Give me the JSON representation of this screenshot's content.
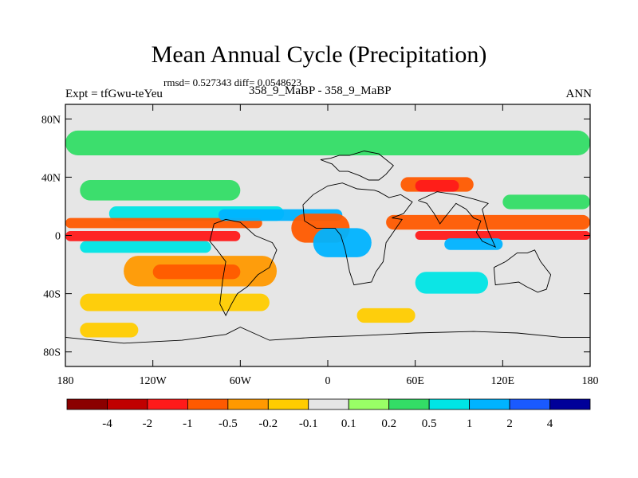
{
  "header": {
    "title": "Mean Annual Cycle (Precipitation)",
    "stats": "rmsd= 0.527343 diff= 0.0548623",
    "expt": "Expt = tfGwu-teYeu",
    "case": "358_9_MaBP - 358_9_MaBP",
    "season": "ANN"
  },
  "colors": {
    "neutral": "#e6e6e6",
    "levels": [
      "#8b0000",
      "#c00000",
      "#ff1a1a",
      "#ff5a00",
      "#ff9900",
      "#ffcc00",
      "#e6e6e6",
      "#99ff66",
      "#33dd66",
      "#00e5e5",
      "#00b3ff",
      "#1a5aff",
      "#000099"
    ]
  },
  "chart_data": {
    "type": "heatmap",
    "title": "Mean Annual Cycle (Precipitation)",
    "xlabel": "",
    "ylabel": "",
    "xlim": [
      -180,
      180
    ],
    "ylim": [
      -90,
      90
    ],
    "x_ticks": [
      {
        "value": -180,
        "label": "180"
      },
      {
        "value": -120,
        "label": "120W"
      },
      {
        "value": -60,
        "label": "60W"
      },
      {
        "value": 0,
        "label": "0"
      },
      {
        "value": 60,
        "label": "60E"
      },
      {
        "value": 120,
        "label": "120E"
      },
      {
        "value": 180,
        "label": "180"
      }
    ],
    "y_ticks": [
      {
        "value": 80,
        "label": "80N"
      },
      {
        "value": 40,
        "label": "40N"
      },
      {
        "value": 0,
        "label": "0"
      },
      {
        "value": -40,
        "label": "40S"
      },
      {
        "value": -80,
        "label": "80S"
      }
    ],
    "colorbar_labels": [
      "-4",
      "-2",
      "-1",
      "-0.5",
      "-0.2",
      "-0.1",
      "0.1",
      "0.2",
      "0.5",
      "1",
      "2",
      "4"
    ],
    "field_bands": [
      {
        "lat": [
          55,
          72
        ],
        "lon": [
          -180,
          180
        ],
        "value": 0.2
      },
      {
        "lat": [
          24,
          38
        ],
        "lon": [
          -170,
          -60
        ],
        "value": 0.2
      },
      {
        "lat": [
          10,
          20
        ],
        "lon": [
          -150,
          -30
        ],
        "value": 0.5
      },
      {
        "lat": [
          5,
          12
        ],
        "lon": [
          -180,
          -45
        ],
        "value": -1
      },
      {
        "lat": [
          -4,
          3
        ],
        "lon": [
          -180,
          -60
        ],
        "value": -2
      },
      {
        "lat": [
          10,
          18
        ],
        "lon": [
          -75,
          10
        ],
        "value": 1
      },
      {
        "lat": [
          -12,
          -4
        ],
        "lon": [
          -170,
          -80
        ],
        "value": 0.5
      },
      {
        "lat": [
          -35,
          -14
        ],
        "lon": [
          -140,
          -35
        ],
        "value": -0.5
      },
      {
        "lat": [
          -30,
          -20
        ],
        "lon": [
          -120,
          -60
        ],
        "value": -1
      },
      {
        "lat": [
          -52,
          -40
        ],
        "lon": [
          -170,
          -40
        ],
        "value": -0.2
      },
      {
        "lat": [
          -70,
          -60
        ],
        "lon": [
          -170,
          -130
        ],
        "value": -0.2
      },
      {
        "lat": [
          -5,
          15
        ],
        "lon": [
          -25,
          15
        ],
        "value": -1
      },
      {
        "lat": [
          -15,
          5
        ],
        "lon": [
          -10,
          30
        ],
        "value": 1
      },
      {
        "lat": [
          30,
          40
        ],
        "lon": [
          50,
          100
        ],
        "value": -1
      },
      {
        "lat": [
          30,
          38
        ],
        "lon": [
          60,
          90
        ],
        "value": -2
      },
      {
        "lat": [
          4,
          14
        ],
        "lon": [
          40,
          180
        ],
        "value": -1
      },
      {
        "lat": [
          -3,
          3
        ],
        "lon": [
          60,
          180
        ],
        "value": -2
      },
      {
        "lat": [
          -10,
          -2
        ],
        "lon": [
          80,
          120
        ],
        "value": 1
      },
      {
        "lat": [
          -40,
          -25
        ],
        "lon": [
          60,
          110
        ],
        "value": 0.5
      },
      {
        "lat": [
          -60,
          -50
        ],
        "lon": [
          20,
          60
        ],
        "value": -0.2
      },
      {
        "lat": [
          18,
          28
        ],
        "lon": [
          120,
          180
        ],
        "value": 0.2
      }
    ],
    "continent_outlines": [
      {
        "name": "eurasia",
        "points": [
          [
            -5,
            52
          ],
          [
            2,
            53
          ],
          [
            8,
            55
          ],
          [
            15,
            55
          ],
          [
            25,
            58
          ],
          [
            35,
            56
          ],
          [
            45,
            48
          ],
          [
            40,
            42
          ],
          [
            35,
            38
          ],
          [
            28,
            38
          ],
          [
            22,
            41
          ],
          [
            14,
            44
          ],
          [
            8,
            44
          ],
          [
            3,
            49
          ],
          [
            -5,
            52
          ]
        ]
      },
      {
        "name": "africa-arabia",
        "points": [
          [
            -17,
            21
          ],
          [
            -10,
            28
          ],
          [
            0,
            34
          ],
          [
            10,
            36
          ],
          [
            20,
            32
          ],
          [
            32,
            31
          ],
          [
            35,
            30
          ],
          [
            42,
            26
          ],
          [
            50,
            28
          ],
          [
            58,
            23
          ],
          [
            52,
            15
          ],
          [
            44,
            12
          ],
          [
            51,
            11
          ],
          [
            40,
            -5
          ],
          [
            38,
            -18
          ],
          [
            33,
            -25
          ],
          [
            30,
            -32
          ],
          [
            18,
            -34
          ],
          [
            15,
            -25
          ],
          [
            12,
            -10
          ],
          [
            9,
            0
          ],
          [
            5,
            5
          ],
          [
            -8,
            5
          ],
          [
            -16,
            10
          ],
          [
            -17,
            21
          ]
        ]
      },
      {
        "name": "south-america",
        "points": [
          [
            -78,
            8
          ],
          [
            -70,
            11
          ],
          [
            -60,
            9
          ],
          [
            -50,
            0
          ],
          [
            -38,
            -5
          ],
          [
            -35,
            -10
          ],
          [
            -40,
            -22
          ],
          [
            -48,
            -27
          ],
          [
            -55,
            -35
          ],
          [
            -62,
            -40
          ],
          [
            -66,
            -47
          ],
          [
            -70,
            -55
          ],
          [
            -74,
            -47
          ],
          [
            -72,
            -30
          ],
          [
            -70,
            -18
          ],
          [
            -76,
            -10
          ],
          [
            -81,
            -4
          ],
          [
            -78,
            8
          ]
        ]
      },
      {
        "name": "india-seasia",
        "points": [
          [
            62,
            24
          ],
          [
            68,
            22
          ],
          [
            73,
            15
          ],
          [
            77,
            8
          ],
          [
            80,
            12
          ],
          [
            88,
            22
          ],
          [
            95,
            18
          ],
          [
            100,
            12
          ],
          [
            105,
            10
          ],
          [
            102,
            2
          ],
          [
            106,
            -4
          ],
          [
            115,
            -8
          ],
          [
            110,
            3
          ],
          [
            108,
            10
          ],
          [
            106,
            18
          ],
          [
            110,
            22
          ],
          [
            100,
            25
          ],
          [
            88,
            28
          ],
          [
            75,
            30
          ],
          [
            62,
            24
          ]
        ]
      },
      {
        "name": "australia",
        "points": [
          [
            114,
            -22
          ],
          [
            122,
            -18
          ],
          [
            130,
            -12
          ],
          [
            137,
            -12
          ],
          [
            142,
            -10
          ],
          [
            146,
            -18
          ],
          [
            153,
            -27
          ],
          [
            150,
            -37
          ],
          [
            144,
            -39
          ],
          [
            136,
            -35
          ],
          [
            131,
            -32
          ],
          [
            115,
            -34
          ],
          [
            114,
            -22
          ]
        ]
      },
      {
        "name": "antarctica",
        "points": [
          [
            -180,
            -70
          ],
          [
            -140,
            -74
          ],
          [
            -100,
            -72
          ],
          [
            -70,
            -68
          ],
          [
            -60,
            -63
          ],
          [
            -40,
            -72
          ],
          [
            -10,
            -70
          ],
          [
            20,
            -69
          ],
          [
            60,
            -67
          ],
          [
            100,
            -66
          ],
          [
            130,
            -67
          ],
          [
            160,
            -70
          ],
          [
            180,
            -70
          ]
        ]
      }
    ]
  }
}
